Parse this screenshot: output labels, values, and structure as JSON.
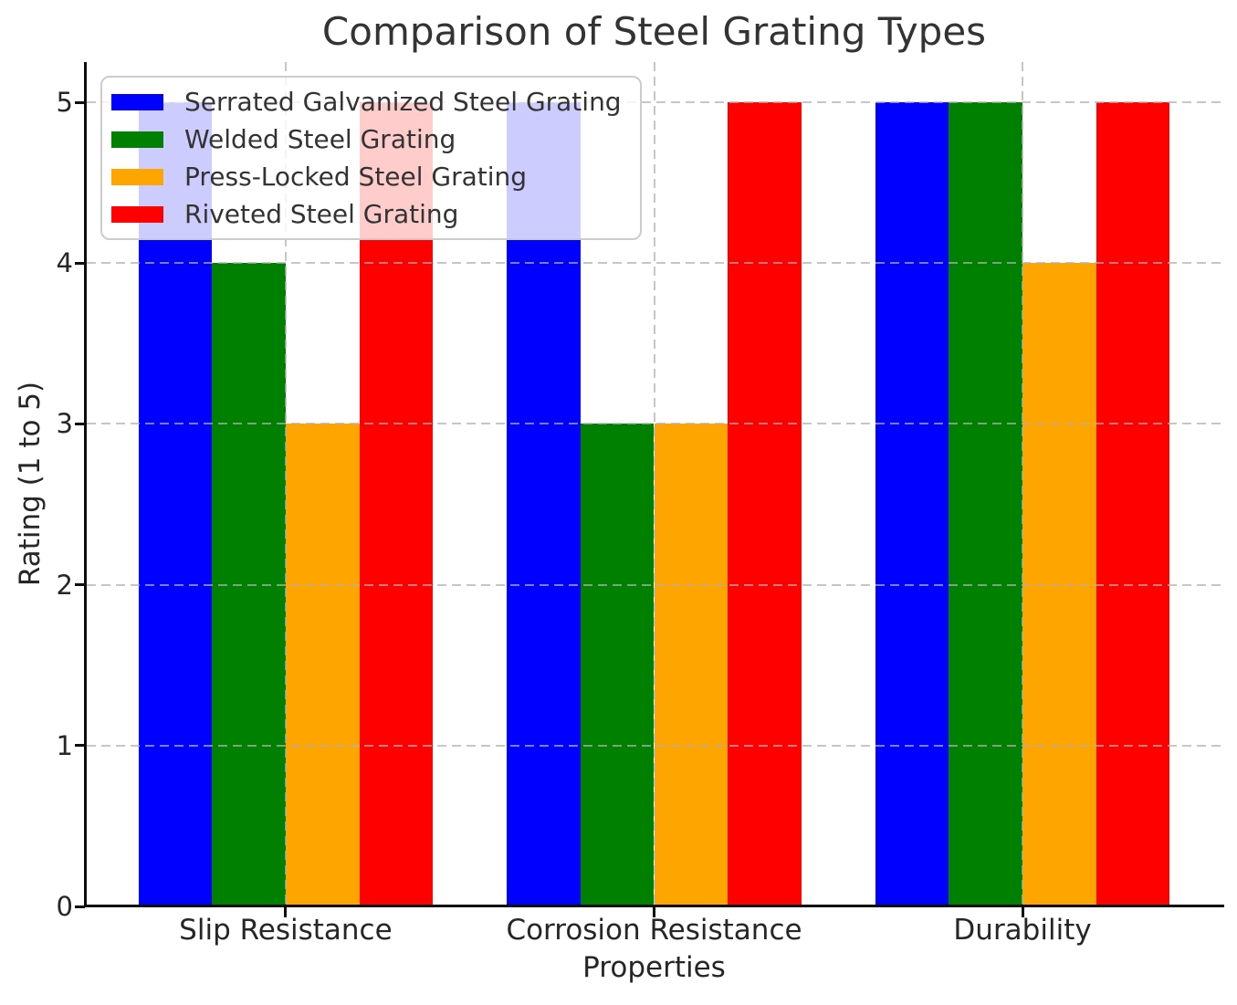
{
  "chart_data": {
    "type": "bar",
    "title": "Comparison of Steel Grating Types",
    "xlabel": "Properties",
    "ylabel": "Rating (1 to 5)",
    "categories": [
      "Slip Resistance",
      "Corrosion Resistance",
      "Durability"
    ],
    "series": [
      {
        "name": "Serrated Galvanized Steel Grating",
        "color": "#0000FF",
        "values": [
          5,
          5,
          5
        ]
      },
      {
        "name": "Welded Steel Grating",
        "color": "#008000",
        "values": [
          4,
          3,
          5
        ]
      },
      {
        "name": "Press-Locked Steel Grating",
        "color": "#FFA500",
        "values": [
          3,
          3,
          4
        ]
      },
      {
        "name": "Riveted Steel Grating",
        "color": "#FF0000",
        "values": [
          5,
          5,
          5
        ]
      }
    ],
    "yticks": [
      0,
      1,
      2,
      3,
      4,
      5
    ],
    "ylim": [
      0,
      5.25
    ],
    "bar_width_units": 0.2,
    "xlim": [
      -0.54,
      2.54
    ],
    "grid": true,
    "grid_style": "dashed",
    "legend_position": "upper left"
  }
}
